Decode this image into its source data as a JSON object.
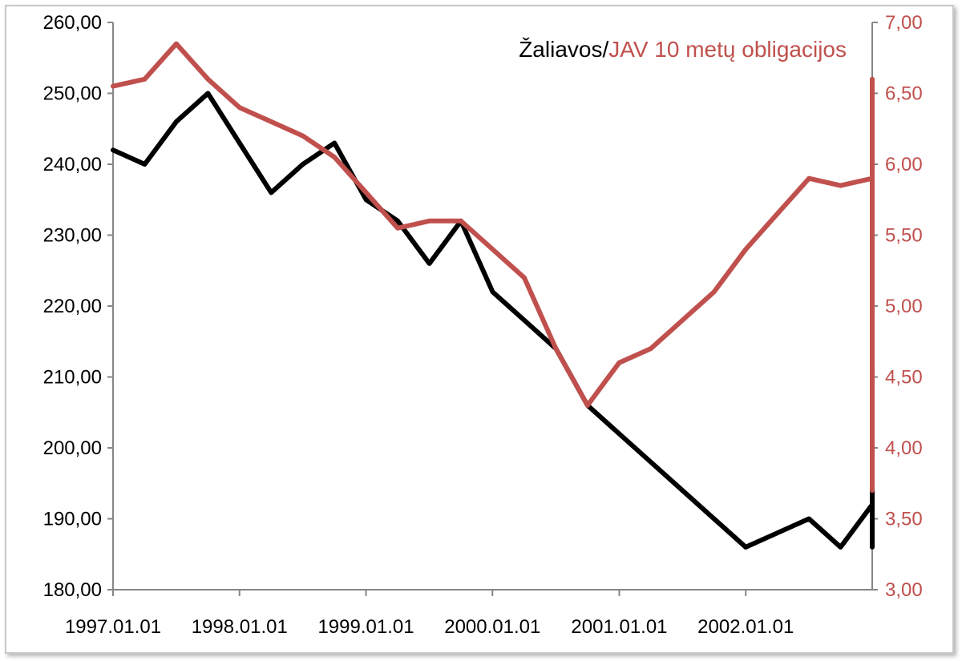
{
  "chart_data": {
    "type": "line",
    "title": {
      "part1": "Žaliavos/",
      "part2": "JAV 10 metų obligacijos"
    },
    "colors": {
      "left_series": "#000000",
      "right_series": "#c0504d",
      "right_axis_text": "#c0504d",
      "axis": "#868686"
    },
    "x_tick_labels": [
      "1997.01.01",
      "1998.01.01",
      "1999.01.01",
      "2000.01.01",
      "2001.01.01",
      "2002.01.01"
    ],
    "x_range": [
      "1997.01.01",
      "2003.01.01"
    ],
    "y_left": {
      "range": [
        180,
        260
      ],
      "tick_labels": [
        "180,00",
        "190,00",
        "200,00",
        "210,00",
        "220,00",
        "230,00",
        "240,00",
        "250,00",
        "260,00"
      ]
    },
    "y_right": {
      "range": [
        3,
        7
      ],
      "tick_labels": [
        "3,00",
        "3,50",
        "4,00",
        "4,50",
        "5,00",
        "5,50",
        "6,00",
        "6,50",
        "7,00"
      ]
    },
    "grid": false,
    "x_point_spacing": "quarter-year",
    "series": [
      {
        "axis": "left",
        "color": "#000000",
        "x_start": "1997.01.01",
        "values": [
          242,
          240,
          246,
          250,
          243,
          236,
          240,
          243,
          235,
          232,
          226,
          232,
          222,
          218,
          214,
          206,
          202,
          198,
          194,
          190,
          186,
          188,
          190,
          186,
          192,
          198,
          204,
          203,
          206,
          212,
          214,
          215,
          217,
          221,
          224,
          222,
          228,
          230,
          224,
          226,
          222,
          216,
          214,
          208,
          202,
          195,
          188,
          186,
          190,
          190,
          198,
          202,
          206,
          214,
          221,
          227,
          230,
          234,
          237
        ]
      },
      {
        "axis": "right",
        "color": "#c0504d",
        "x_start": "1997.01.01",
        "values": [
          6.55,
          6.6,
          6.85,
          6.6,
          6.4,
          6.3,
          6.2,
          6.05,
          5.8,
          5.55,
          5.6,
          5.6,
          5.4,
          5.2,
          4.7,
          4.3,
          4.6,
          4.7,
          4.9,
          5.1,
          5.4,
          5.65,
          5.9,
          5.85,
          5.9,
          6.1,
          6.6,
          6.3,
          6.35,
          6.0,
          5.9,
          5.75,
          5.5,
          5.2,
          5.1,
          5.4,
          5.3,
          5.1,
          4.8,
          4.5,
          4.3,
          4.8,
          5.05,
          5.1,
          5.35,
          5.1,
          4.8,
          4.5,
          4.0,
          3.7,
          4.0,
          3.95
        ]
      }
    ]
  }
}
